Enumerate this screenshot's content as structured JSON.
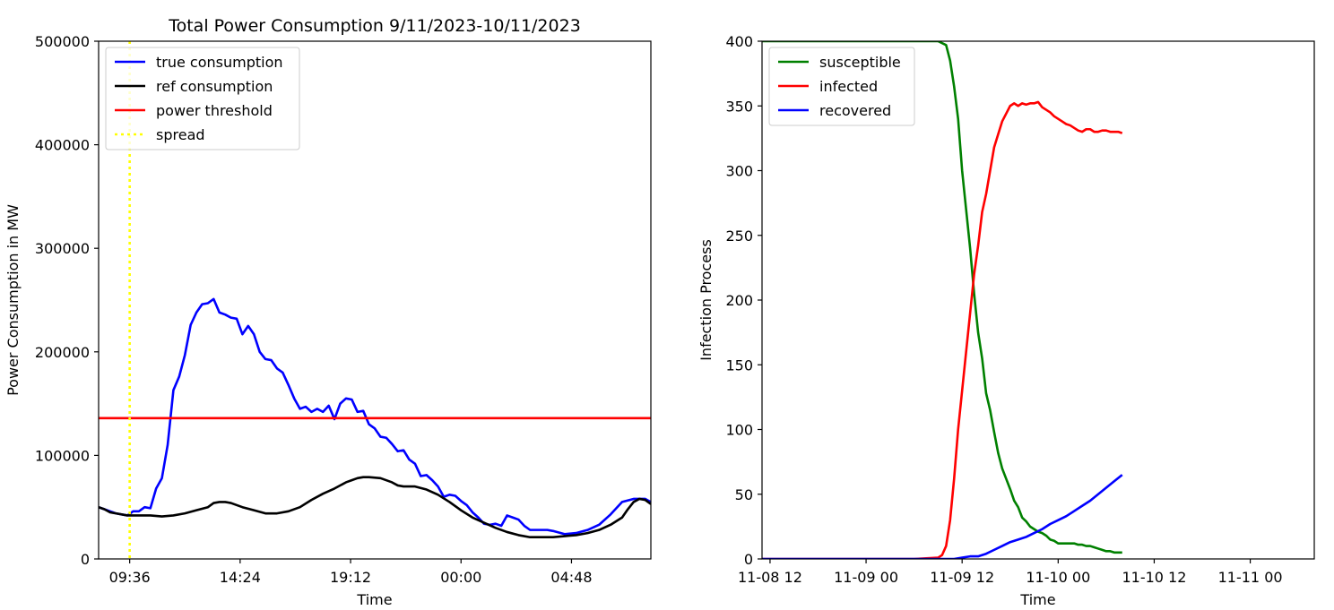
{
  "chart_data": [
    {
      "type": "line",
      "title": "Total Power Consumption 9/11/2023-10/11/2023",
      "xlabel": "Time",
      "ylabel": "Power Consumption in MW",
      "ylim": [
        0,
        500000
      ],
      "yticks": [
        0,
        100000,
        200000,
        300000,
        400000,
        500000
      ],
      "x_unit": "hours",
      "xlim": [
        8.25,
        32.25
      ],
      "xticks": [
        {
          "value": 9.6,
          "label": "09:36"
        },
        {
          "value": 14.4,
          "label": "14:24"
        },
        {
          "value": 19.2,
          "label": "19:12"
        },
        {
          "value": 24.0,
          "label": "00:00"
        },
        {
          "value": 28.8,
          "label": "04:48"
        }
      ],
      "grid": false,
      "legend_position": "upper-left",
      "legend": [
        "true consumption",
        "ref consumption",
        "power threshold",
        "spread"
      ],
      "series": [
        {
          "name": "true consumption",
          "color": "#0000ff",
          "style": "solid",
          "x": [
            8.25,
            8.5,
            8.75,
            9.0,
            9.25,
            9.5,
            9.75,
            10.0,
            10.25,
            10.5,
            10.75,
            11.0,
            11.25,
            11.5,
            11.75,
            12.0,
            12.25,
            12.5,
            12.75,
            13.0,
            13.25,
            13.5,
            13.75,
            14.0,
            14.25,
            14.5,
            14.75,
            15.0,
            15.25,
            15.5,
            15.75,
            16.0,
            16.25,
            16.5,
            16.75,
            17.0,
            17.25,
            17.5,
            17.75,
            18.0,
            18.25,
            18.5,
            18.75,
            19.0,
            19.25,
            19.5,
            19.75,
            20.0,
            20.25,
            20.5,
            20.75,
            21.0,
            21.25,
            21.5,
            21.75,
            22.0,
            22.25,
            22.5,
            22.75,
            23.0,
            23.25,
            23.5,
            23.75,
            24.0,
            24.25,
            24.5,
            24.75,
            25.0,
            25.25,
            25.5,
            25.75,
            26.0,
            26.25,
            26.5,
            26.75,
            27.0,
            27.25,
            27.5,
            27.75,
            28.0,
            28.5,
            29.0,
            29.5,
            30.0,
            30.5,
            31.0,
            31.5,
            32.0,
            32.25
          ],
          "y": [
            50000,
            48000,
            46000,
            44000,
            43000,
            42000,
            46000,
            46000,
            50000,
            49000,
            68000,
            78000,
            110000,
            163000,
            176000,
            197000,
            226000,
            238000,
            246000,
            247000,
            251000,
            238000,
            236000,
            233000,
            232000,
            217000,
            225000,
            217000,
            200000,
            193000,
            192000,
            184000,
            180000,
            168000,
            155000,
            145000,
            147000,
            142000,
            145000,
            142000,
            148000,
            135000,
            150000,
            155000,
            154000,
            142000,
            143000,
            130000,
            126000,
            118000,
            117000,
            111000,
            104000,
            105000,
            96000,
            92000,
            80000,
            81000,
            76000,
            70000,
            60000,
            62000,
            61000,
            56000,
            52000,
            45000,
            40000,
            34000,
            33000,
            34000,
            32000,
            42000,
            40000,
            38000,
            32000,
            28000,
            28000,
            28000,
            28000,
            27000,
            24000,
            25000,
            28000,
            33000,
            43000,
            55000,
            58000,
            58000,
            55000
          ]
        },
        {
          "name": "ref consumption",
          "color": "#000000",
          "style": "solid",
          "x": [
            8.25,
            8.5,
            8.75,
            9.0,
            9.5,
            10.0,
            10.5,
            11.0,
            11.5,
            12.0,
            12.5,
            13.0,
            13.25,
            13.5,
            13.75,
            14.0,
            14.5,
            15.0,
            15.5,
            16.0,
            16.5,
            17.0,
            17.5,
            18.0,
            18.5,
            19.0,
            19.25,
            19.5,
            19.75,
            20.0,
            20.5,
            21.0,
            21.25,
            21.5,
            22.0,
            22.5,
            23.0,
            23.5,
            24.0,
            24.5,
            25.0,
            25.5,
            26.0,
            26.5,
            27.0,
            27.5,
            28.0,
            28.5,
            29.0,
            29.5,
            30.0,
            30.5,
            31.0,
            31.25,
            31.5,
            31.75,
            32.0,
            32.25
          ],
          "y": [
            50000,
            48000,
            45000,
            44000,
            42000,
            42000,
            42000,
            41000,
            42000,
            44000,
            47000,
            50000,
            54000,
            55000,
            55000,
            54000,
            50000,
            47000,
            44000,
            44000,
            46000,
            50000,
            57000,
            63000,
            68000,
            74000,
            76000,
            78000,
            79000,
            79000,
            78000,
            74000,
            71000,
            70000,
            70000,
            67000,
            62000,
            55000,
            47000,
            40000,
            35000,
            30000,
            26000,
            23000,
            21000,
            21000,
            21000,
            22000,
            23000,
            25000,
            28000,
            33000,
            40000,
            48000,
            55000,
            58000,
            57000,
            53000
          ]
        },
        {
          "name": "power threshold",
          "color": "#ff0000",
          "style": "solid",
          "x": [
            8.25,
            32.25
          ],
          "y": [
            136000,
            136000
          ]
        }
      ],
      "vlines": [
        {
          "name": "spread",
          "color": "#ffff00",
          "style": "dotted",
          "x": 9.6
        }
      ]
    },
    {
      "type": "line",
      "title": "",
      "xlabel": "Time",
      "ylabel": "Infection Process",
      "ylim": [
        0,
        400
      ],
      "yticks": [
        0,
        50,
        100,
        150,
        200,
        250,
        300,
        350,
        400
      ],
      "x_unit": "hours since 11-08 00:00",
      "xlim": [
        11,
        80
      ],
      "xticks": [
        {
          "value": 12,
          "label": "11-08 12"
        },
        {
          "value": 24,
          "label": "11-09 00"
        },
        {
          "value": 36,
          "label": "11-09 12"
        },
        {
          "value": 48,
          "label": "11-10 00"
        },
        {
          "value": 60,
          "label": "11-10 12"
        },
        {
          "value": 72,
          "label": "11-11 00"
        }
      ],
      "grid": false,
      "legend_position": "upper-left",
      "legend": [
        "susceptible",
        "infected",
        "recovered"
      ],
      "series": [
        {
          "name": "susceptible",
          "color": "#008000",
          "x": [
            11,
            20,
            30,
            33,
            34,
            34.5,
            35,
            35.5,
            36,
            36.5,
            37,
            37.5,
            38,
            38.5,
            39,
            39.5,
            40,
            40.5,
            41,
            41.5,
            42,
            42.5,
            43,
            43.5,
            44,
            44.5,
            45,
            45.5,
            46,
            46.5,
            47,
            47.5,
            48,
            48.5,
            49,
            49.5,
            50,
            50.5,
            51,
            51.5,
            52,
            52.5,
            53,
            53.5,
            54,
            54.5,
            55,
            55.5,
            56
          ],
          "y": [
            400,
            400,
            400,
            400,
            397,
            385,
            365,
            340,
            300,
            270,
            240,
            205,
            175,
            155,
            128,
            115,
            98,
            82,
            70,
            62,
            54,
            45,
            40,
            32,
            29,
            25,
            23,
            21,
            20,
            18,
            15,
            14,
            12,
            12,
            12,
            12,
            12,
            11,
            11,
            10,
            10,
            9,
            8,
            7,
            6,
            6,
            5,
            5,
            5
          ]
        },
        {
          "name": "infected",
          "color": "#ff0000",
          "x": [
            11,
            20,
            30,
            33,
            33.5,
            34,
            34.5,
            35,
            35.5,
            36,
            36.5,
            37,
            37.5,
            38,
            38.5,
            39,
            39.5,
            40,
            40.5,
            41,
            41.5,
            42,
            42.5,
            43,
            43.5,
            44,
            44.5,
            45,
            45.5,
            46,
            46.5,
            47,
            47.5,
            48,
            48.5,
            49,
            49.5,
            50,
            50.5,
            51,
            51.5,
            52,
            52.5,
            53,
            53.5,
            54,
            54.5,
            55,
            55.5,
            56
          ],
          "y": [
            0,
            0,
            0,
            1,
            3,
            10,
            30,
            62,
            100,
            130,
            160,
            190,
            220,
            242,
            268,
            282,
            300,
            318,
            328,
            338,
            344,
            350,
            352,
            350,
            352,
            351,
            352,
            352,
            353,
            349,
            347,
            345,
            342,
            340,
            338,
            336,
            335,
            333,
            331,
            330,
            332,
            332,
            330,
            330,
            331,
            331,
            330,
            330,
            330,
            329
          ]
        },
        {
          "name": "recovered",
          "color": "#0000ff",
          "x": [
            11,
            20,
            30,
            35,
            36,
            37,
            38,
            39,
            40,
            41,
            42,
            43,
            44,
            45,
            46,
            47,
            48,
            49,
            50,
            51,
            52,
            53,
            54,
            55,
            56
          ],
          "y": [
            0,
            0,
            0,
            0,
            1,
            2,
            2,
            4,
            7,
            10,
            13,
            15,
            17,
            20,
            23,
            27,
            30,
            33,
            37,
            41,
            45,
            50,
            55,
            60,
            65
          ]
        }
      ]
    }
  ]
}
